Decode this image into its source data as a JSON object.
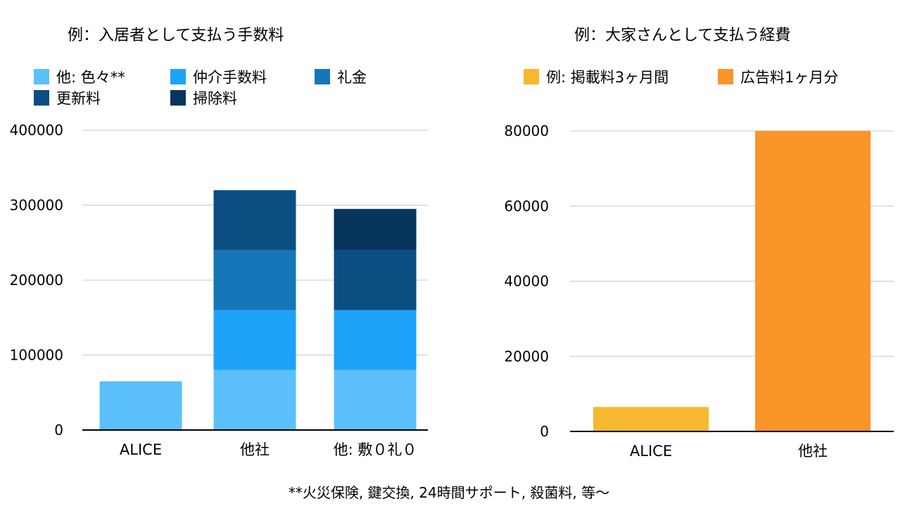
{
  "chart_data": [
    {
      "type": "bar",
      "stacked": true,
      "title": "例：入居者として支払う手数料",
      "categories": [
        "ALICE",
        "他社",
        "他: 敷０礼０"
      ],
      "series": [
        {
          "name": "他: 色々**",
          "color": "#5bc0fb",
          "values": [
            65000,
            80000,
            80000
          ]
        },
        {
          "name": "仲介手数料",
          "color": "#1ea3fb",
          "values": [
            0,
            80000,
            80000
          ]
        },
        {
          "name": "礼金",
          "color": "#1576b8",
          "values": [
            0,
            80000,
            0
          ]
        },
        {
          "name": "更新料",
          "color": "#0b4f82",
          "values": [
            0,
            80000,
            80000
          ]
        },
        {
          "name": "掃除料",
          "color": "#07355e",
          "values": [
            0,
            0,
            55000
          ]
        }
      ],
      "ylim": [
        0,
        400000
      ],
      "yticks": [
        "0",
        "100000",
        "200000",
        "300000",
        "400000"
      ],
      "grid": true,
      "legend": "top"
    },
    {
      "type": "bar",
      "title": "例：大家さんとして支払う経費",
      "categories": [
        "ALICE",
        "他社"
      ],
      "series": [
        {
          "name": "例: 掲載料3ヶ月間",
          "color": "#f5b82e",
          "values": [
            6500,
            null
          ]
        },
        {
          "name": "広告料1ヶ月分",
          "color": "#fa9528",
          "values": [
            null,
            80000
          ]
        }
      ],
      "ylim": [
        0,
        80000
      ],
      "yticks": [
        "0",
        "20000",
        "40000",
        "60000",
        "80000"
      ],
      "grid": true,
      "legend": "top"
    }
  ],
  "footnote": "**火災保険, 鍵交換, 24時間サポート, 殺菌料, 等〜"
}
